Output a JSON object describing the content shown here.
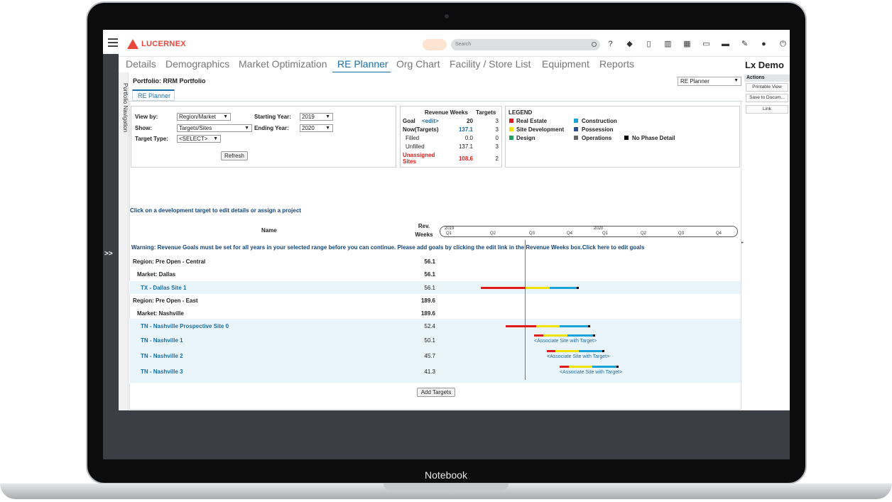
{
  "device": {
    "label": "Notebook"
  },
  "app": {
    "brand": "LUCERNEX",
    "search_placeholder": "Search",
    "user": "Lx Demo",
    "top_icons": [
      "help-icon",
      "tag-icon",
      "bookmark-icon",
      "chart-icon",
      "calendar-icon",
      "monitor-icon",
      "briefcase-icon",
      "wrench-icon",
      "user-icon",
      "power-icon"
    ]
  },
  "tabs": [
    {
      "label": "Details",
      "active": false
    },
    {
      "label": "Demographics",
      "active": false
    },
    {
      "label": "Market Optimization",
      "active": false
    },
    {
      "label": "RE Planner",
      "active": true
    },
    {
      "label": "Org Chart",
      "active": false
    },
    {
      "label": "Facility / Store List",
      "active": false
    },
    {
      "label": "Equipment",
      "active": false
    },
    {
      "label": "Reports",
      "active": false
    }
  ],
  "left_rail": {
    "expand": ">>",
    "nav_label": "Portfolio Navigation"
  },
  "portfolio": {
    "title": "Portfolio: RRM Portfolio",
    "subtab": "RE Planner",
    "view_select": "RE Planner"
  },
  "filters": {
    "view_by_label": "View by:",
    "view_by_value": "Region/Market",
    "show_label": "Show:",
    "show_value": "Targets/Sites",
    "target_type_label": "Target Type:",
    "target_type_value": "<SELECT>",
    "starting_year_label": "Starting Year:",
    "starting_year_value": "2019",
    "ending_year_label": "Ending Year:",
    "ending_year_value": "2020",
    "refresh_label": "Refresh"
  },
  "revenue": {
    "col_weeks": "Revenue Weeks",
    "col_targets": "Targets",
    "goal_label": "Goal",
    "edit_link": "<edit>",
    "goal_weeks": "20",
    "goal_targets": "3",
    "now_label": "Now(Targets)",
    "now_weeks": "137.1",
    "now_targets": "3",
    "filled_label": "Filled",
    "filled_weeks": "0.0",
    "filled_targets": "0",
    "unfilled_label": "Unfilled",
    "unfilled_weeks": "137.1",
    "unfilled_targets": "3",
    "unassigned_label_1": "Unassigned",
    "unassigned_label_2": "Sites",
    "unassigned_weeks": "108.6",
    "unassigned_targets": "2"
  },
  "legend": {
    "title": "LEGEND",
    "items": [
      {
        "label": "Real Estate",
        "color": "#e01b1b"
      },
      {
        "label": "Construction",
        "color": "#1aa3d9"
      },
      {
        "label": "Site Development",
        "color": "#f2e200"
      },
      {
        "label": "Possession",
        "color": "#2d4f8c"
      },
      {
        "label": "Design",
        "color": "#1f9e63"
      },
      {
        "label": "Operations",
        "color": "#666666"
      },
      {
        "label": "No Phase Detail",
        "color": "#000000"
      }
    ]
  },
  "grid": {
    "instruction": "Click on a development target to edit details or assign a project",
    "col_name": "Name",
    "col_rev_1": "Rev.",
    "col_rev_2": "Weeks",
    "timeline": {
      "year_1": "2019",
      "year_2": "2020",
      "quarters": [
        "Q1",
        "Q2",
        "Q3",
        "Q4",
        "Q1",
        "Q2",
        "Q3",
        "Q4"
      ]
    },
    "warning": "Warning: Revenue Goals must be set for all years in your selected range before you can continue. Please add goals by clicking the edit link in the Revenue Weeks box.Click here to edit goals",
    "rows": [
      {
        "name": "Region: Pre Open - Central",
        "value": "56.1"
      },
      {
        "name": "Market: Dallas",
        "value": "56.1"
      },
      {
        "name": "TX - Dallas Site 1",
        "value": "56.1"
      },
      {
        "name": "Region: Pre Open - East",
        "value": "189.6"
      },
      {
        "name": "Market: Nashville",
        "value": "189.6"
      },
      {
        "name": "TN - Nashville Prospective Site 0",
        "value": "52.4"
      },
      {
        "name": "TN - Nashville 1",
        "value": "50.1",
        "assoc": "<Associate Site with Target>"
      },
      {
        "name": "TN - Nashville 2",
        "value": "45.7",
        "assoc": "<Associate Site with Target>"
      },
      {
        "name": "TN - Nashville 3",
        "value": "41.3",
        "assoc": "<Associate Site with Target>"
      }
    ],
    "add_targets_label": "Add Targets"
  },
  "actions": {
    "title": "Actions",
    "buttons": [
      "Printable View",
      "Save to Docum...",
      "Link"
    ]
  }
}
